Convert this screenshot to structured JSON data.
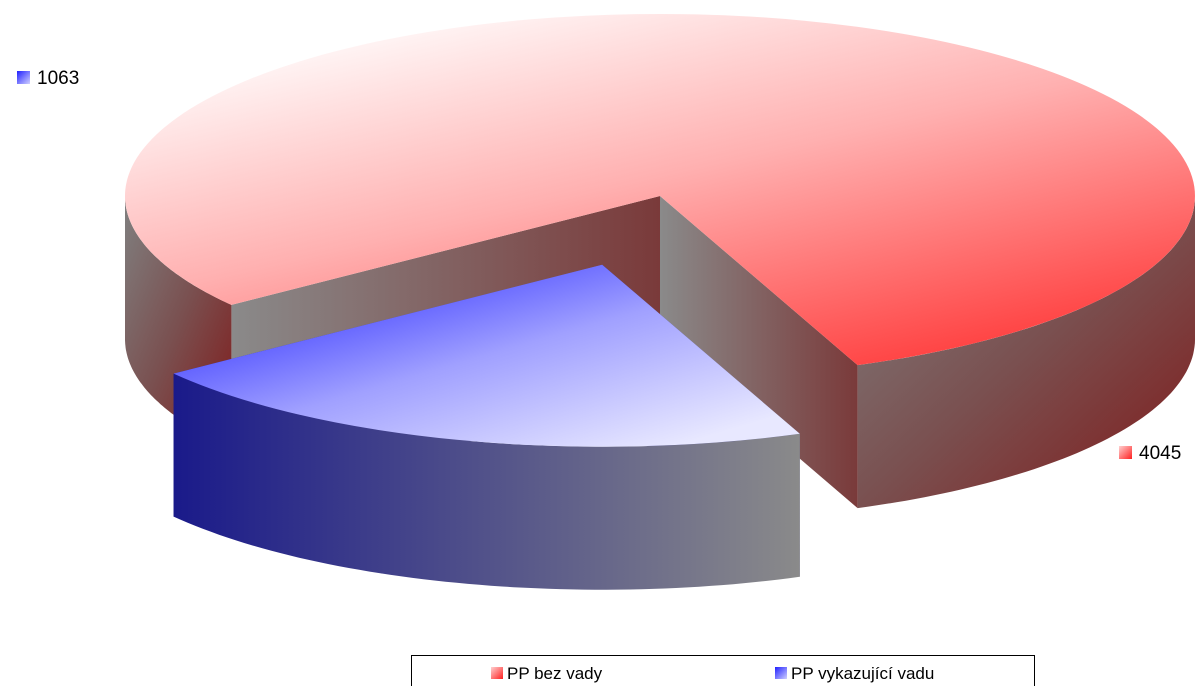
{
  "chart_data": {
    "type": "pie",
    "title": "",
    "categories": [
      "PP bez vady",
      "PP vykazující vadu"
    ],
    "values": [
      4045,
      1063
    ],
    "data_labels": [
      "4045",
      "1063"
    ],
    "colors": [
      "#ff4040",
      "#3a3aff"
    ],
    "explode": [
      false,
      true
    ],
    "style": "3d",
    "legend": {
      "position": "bottom-right",
      "entries": [
        "PP bez vady",
        "PP vykazující vadu"
      ]
    }
  }
}
